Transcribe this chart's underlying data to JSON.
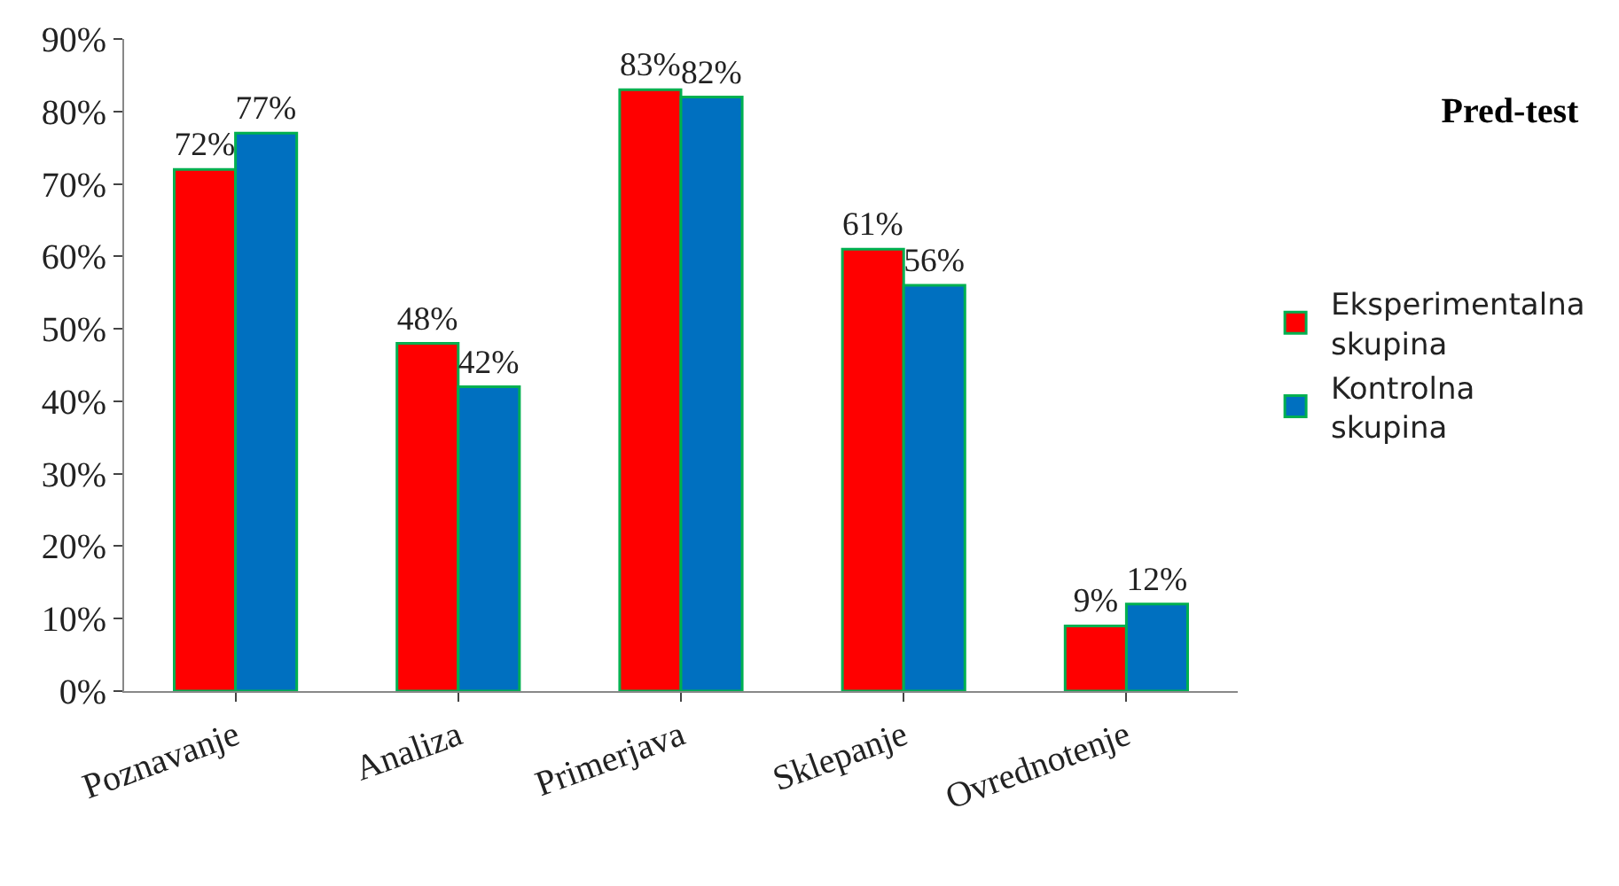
{
  "chart_data": {
    "type": "bar",
    "title": "Pred-test",
    "categories": [
      "Poznavanje",
      "Analiza",
      "Primerjava",
      "Sklepanje",
      "Ovrednotenje"
    ],
    "series": [
      {
        "name": "Eksperimentalna skupina",
        "color": "#ff0000",
        "values": [
          72,
          48,
          83,
          61,
          9
        ],
        "value_labels": [
          "72%",
          "48%",
          "83%",
          "61%",
          "9%"
        ]
      },
      {
        "name": "Kontrolna skupina",
        "color": "#0070c0",
        "values": [
          77,
          42,
          82,
          56,
          12
        ],
        "value_labels": [
          "77%",
          "42%",
          "82%",
          "56%",
          "12%"
        ]
      }
    ],
    "ylim": [
      0,
      90
    ],
    "yticks": [
      {
        "value": 0,
        "label": "0%"
      },
      {
        "value": 10,
        "label": "10%"
      },
      {
        "value": 20,
        "label": "20%"
      },
      {
        "value": 30,
        "label": "30%"
      },
      {
        "value": 40,
        "label": "40%"
      },
      {
        "value": 50,
        "label": "50%"
      },
      {
        "value": 60,
        "label": "60%"
      },
      {
        "value": 70,
        "label": "70%"
      },
      {
        "value": 80,
        "label": "80%"
      },
      {
        "value": 90,
        "label": "90%"
      }
    ],
    "legend": "right"
  }
}
